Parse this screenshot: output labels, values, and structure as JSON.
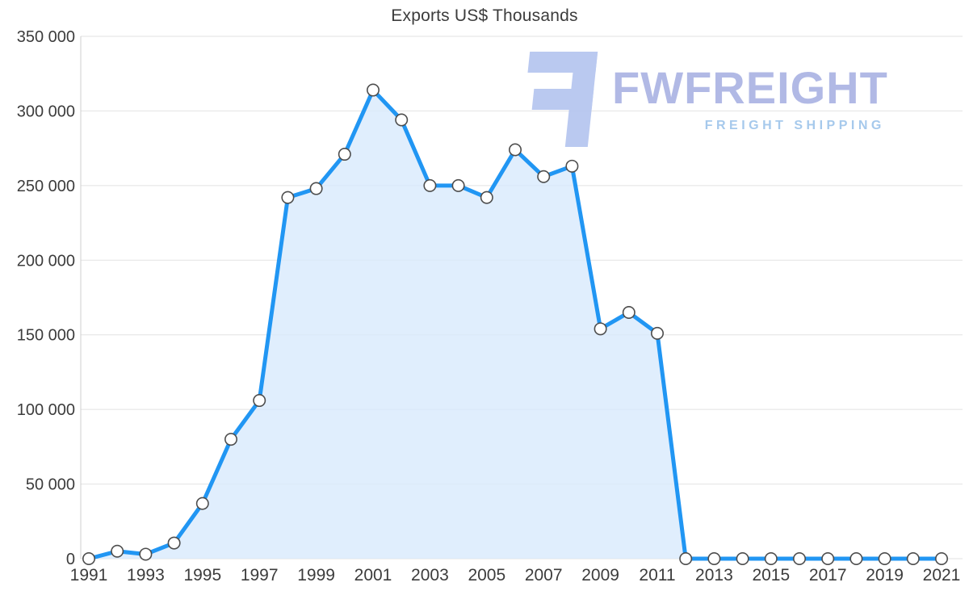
{
  "watermark": {
    "brand": "FWFREIGHT",
    "tagline": "FREIGHT SHIPPING",
    "brand_color": "#a9b2e3",
    "tagline_color": "#9dc4ea",
    "glyph_color": "#b3c4ef",
    "glyph_icon": "fwfreight-logo-glyph"
  },
  "chart_data": {
    "type": "area",
    "title": "Exports US$ Thousands",
    "xlabel": "",
    "ylabel": "",
    "x": [
      1991,
      1992,
      1993,
      1994,
      1995,
      1996,
      1997,
      1998,
      1999,
      2000,
      2001,
      2002,
      2003,
      2004,
      2005,
      2006,
      2007,
      2008,
      2009,
      2010,
      2011,
      2012,
      2013,
      2014,
      2015,
      2016,
      2017,
      2018,
      2019,
      2020,
      2021
    ],
    "values": [
      0,
      5000,
      3000,
      10500,
      37000,
      80000,
      106000,
      242000,
      248000,
      271000,
      314000,
      294000,
      250000,
      250000,
      242000,
      274000,
      256000,
      263000,
      154000,
      165000,
      151000,
      0,
      0,
      0,
      0,
      0,
      0,
      0,
      0,
      0,
      0
    ],
    "ylim": [
      0,
      350000
    ],
    "yticks": [
      0,
      50000,
      100000,
      150000,
      200000,
      250000,
      300000,
      350000
    ],
    "ytick_labels": [
      "0",
      "50 000",
      "100 000",
      "150 000",
      "200 000",
      "250 000",
      "300 000",
      "350 000"
    ],
    "xticks": [
      1991,
      1993,
      1995,
      1997,
      1999,
      2001,
      2003,
      2005,
      2007,
      2009,
      2011,
      2013,
      2015,
      2017,
      2019,
      2021
    ],
    "xtick_labels": [
      "1991",
      "1993",
      "1995",
      "1997",
      "1999",
      "2001",
      "2003",
      "2005",
      "2007",
      "2009",
      "2011",
      "2013",
      "2015",
      "2017",
      "2019",
      "2021"
    ],
    "grid": true,
    "legend_position": "none",
    "marker": "circle-white",
    "colors": {
      "line": "#2196f3",
      "fill": "#d8eafc",
      "marker_fill": "#ffffff",
      "marker_stroke": "#4d4d4d",
      "grid": "#e2e2e2",
      "axis": "#cfcfcf",
      "tick_text": "#3c3c3c",
      "title_text": "#3c3c3c"
    }
  }
}
